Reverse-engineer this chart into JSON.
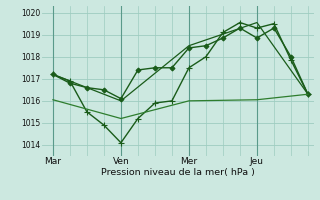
{
  "bg_color": "#cce8e0",
  "grid_color": "#9eccc0",
  "vline_color": "#5a9a8a",
  "line_color1": "#1a5c1a",
  "line_color2": "#2e7d2e",
  "xlabel": "Pression niveau de la mer( hPa )",
  "ylim": [
    1013.5,
    1020.3
  ],
  "yticks": [
    1014,
    1015,
    1016,
    1017,
    1018,
    1019,
    1020
  ],
  "xtick_labels": [
    "Mar",
    "Ven",
    "Mer",
    "Jeu"
  ],
  "xtick_pos": [
    0,
    24,
    48,
    72
  ],
  "xlim": [
    -4,
    92
  ],
  "series": [
    {
      "x": [
        0,
        6,
        12,
        18,
        24,
        30,
        36,
        42,
        48,
        54,
        60,
        66,
        72,
        78,
        84,
        90
      ],
      "y": [
        1017.2,
        1016.8,
        1016.6,
        1016.5,
        1016.1,
        1017.4,
        1017.5,
        1017.5,
        1018.4,
        1018.5,
        1018.85,
        1019.3,
        1018.85,
        1019.3,
        1018.0,
        1016.3
      ],
      "marker": "D",
      "markersize": 2.5,
      "linewidth": 1.0,
      "color": "#1a5c1a"
    },
    {
      "x": [
        0,
        6,
        12,
        18,
        24,
        30,
        36,
        42,
        48,
        54,
        60,
        66,
        72,
        78,
        84,
        90
      ],
      "y": [
        1017.2,
        1016.9,
        1015.5,
        1014.9,
        1014.1,
        1015.2,
        1015.9,
        1016.0,
        1017.5,
        1018.0,
        1019.1,
        1019.55,
        1019.3,
        1019.5,
        1017.85,
        1016.3
      ],
      "marker": "+",
      "markersize": 4,
      "linewidth": 1.0,
      "color": "#1a5c1a"
    },
    {
      "x": [
        0,
        24,
        48,
        72,
        90
      ],
      "y": [
        1017.2,
        1016.0,
        1018.5,
        1019.55,
        1016.3
      ],
      "marker": null,
      "markersize": 0,
      "linewidth": 0.9,
      "color": "#1a5c1a"
    },
    {
      "x": [
        0,
        24,
        48,
        72,
        90
      ],
      "y": [
        1016.05,
        1015.2,
        1016.0,
        1016.05,
        1016.3
      ],
      "marker": null,
      "markersize": 0,
      "linewidth": 0.9,
      "color": "#2e7d2e"
    }
  ]
}
